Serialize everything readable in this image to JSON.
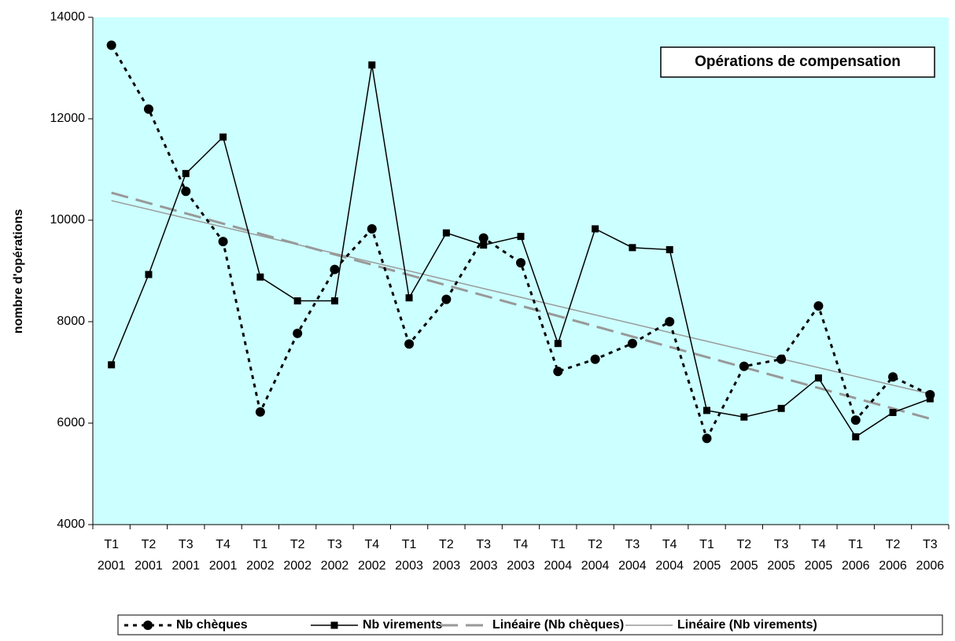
{
  "chart_data": {
    "type": "line",
    "title": "Opérations de compensation",
    "y_label": "nombre d'opérations",
    "categories": [
      [
        "T1",
        "2001"
      ],
      [
        "T2",
        "2001"
      ],
      [
        "T3",
        "2001"
      ],
      [
        "T4",
        "2001"
      ],
      [
        "T1",
        "2002"
      ],
      [
        "T2",
        "2002"
      ],
      [
        "T3",
        "2002"
      ],
      [
        "T4",
        "2002"
      ],
      [
        "T1",
        "2003"
      ],
      [
        "T2",
        "2003"
      ],
      [
        "T3",
        "2003"
      ],
      [
        "T4",
        "2003"
      ],
      [
        "T1",
        "2004"
      ],
      [
        "T2",
        "2004"
      ],
      [
        "T3",
        "2004"
      ],
      [
        "T4",
        "2004"
      ],
      [
        "T1",
        "2005"
      ],
      [
        "T2",
        "2005"
      ],
      [
        "T3",
        "2005"
      ],
      [
        "T4",
        "2005"
      ],
      [
        "T1",
        "2006"
      ],
      [
        "T2",
        "2006"
      ],
      [
        "T3",
        "2006"
      ]
    ],
    "series": [
      {
        "name": "Nb chèques",
        "color": "#000000",
        "marker": "circle",
        "dashed": true,
        "values": [
          13450,
          12190,
          10570,
          9580,
          6220,
          7770,
          9030,
          9830,
          7560,
          8440,
          9650,
          9160,
          7020,
          7260,
          7570,
          8000,
          5700,
          7120,
          7260,
          8310,
          6060,
          6910,
          6560
        ]
      },
      {
        "name": "Nb virements",
        "color": "#000000",
        "marker": "square",
        "dashed": false,
        "values": [
          7150,
          8930,
          10920,
          11640,
          8880,
          8410,
          8410,
          13060,
          8470,
          9750,
          9510,
          9680,
          7570,
          9830,
          9460,
          9420,
          6250,
          6120,
          6290,
          6890,
          5730,
          6210,
          6480
        ]
      }
    ],
    "trendlines": [
      {
        "name": "Linéaire (Nb chèques)",
        "color": "#999999",
        "dashed": true
      },
      {
        "name": "Linéaire (Nb virements)",
        "color": "#999999",
        "dashed": false
      }
    ],
    "ylim": [
      4000,
      14000
    ],
    "yticks": [
      4000,
      6000,
      8000,
      10000,
      12000,
      14000
    ],
    "grid": false,
    "legend": "bottom"
  }
}
